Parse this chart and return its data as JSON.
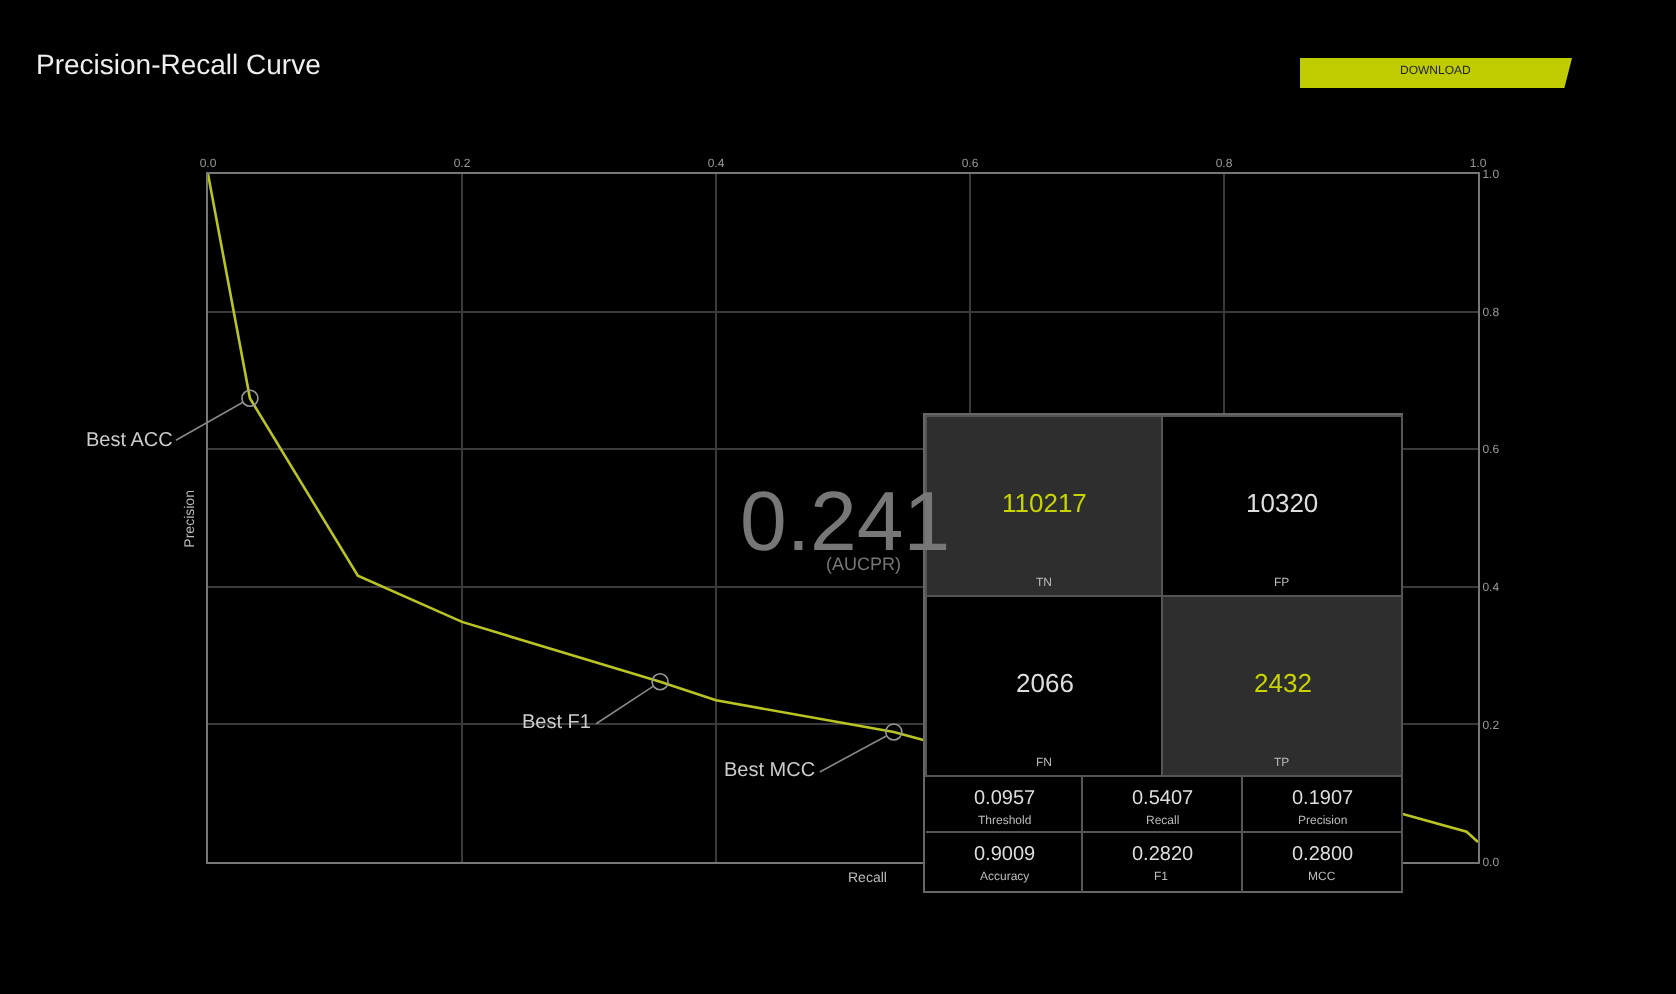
{
  "chart_data": {
    "type": "line",
    "title": "Precision-Recall Curve",
    "xlabel": "Recall",
    "ylabel": "Precision",
    "x": [
      0.0,
      0.033,
      0.118,
      0.2,
      0.356,
      0.4,
      0.54,
      0.564,
      0.75,
      0.94,
      0.991,
      1.0
    ],
    "series": [
      {
        "color": "#b9c423",
        "values": [
          1.0,
          0.674,
          0.416,
          0.349,
          0.262,
          0.235,
          0.189,
          0.177,
          null,
          0.07,
          0.044,
          0.029
        ]
      }
    ],
    "xlim": [
      0,
      1
    ],
    "xticks": [
      {
        "value": 0,
        "label": "0.0"
      },
      0.2,
      0.4,
      0.6,
      0.8,
      {
        "value": 1,
        "label": "1.0"
      }
    ],
    "ylim": [
      0,
      1
    ],
    "yticks": [
      {
        "value": 0,
        "label": "0.0"
      },
      0.2,
      0.4,
      0.6,
      0.8,
      {
        "value": 1,
        "label": "1.0"
      }
    ],
    "grid": true,
    "marker": "none",
    "line_style": "solid",
    "annotations": [
      "0.241",
      "(AUCPR)",
      "DOWNLOAD",
      {
        "text": "Best ACC",
        "x": 0.033,
        "y": 0.674
      },
      {
        "text": "Best F1",
        "x": 0.356,
        "y": 0.262
      },
      {
        "text": "Best MCC",
        "x": 0.54,
        "y": 0.189
      },
      "110217",
      "TN",
      "10320",
      "FP",
      "2066",
      "FN",
      "2432",
      "TP",
      "0.0957",
      "Threshold",
      "0.5407",
      "Recall",
      "0.1907",
      "Precision",
      "0.9009",
      "Accuracy",
      "0.2820",
      "F1",
      "0.2800",
      "MCC"
    ]
  }
}
